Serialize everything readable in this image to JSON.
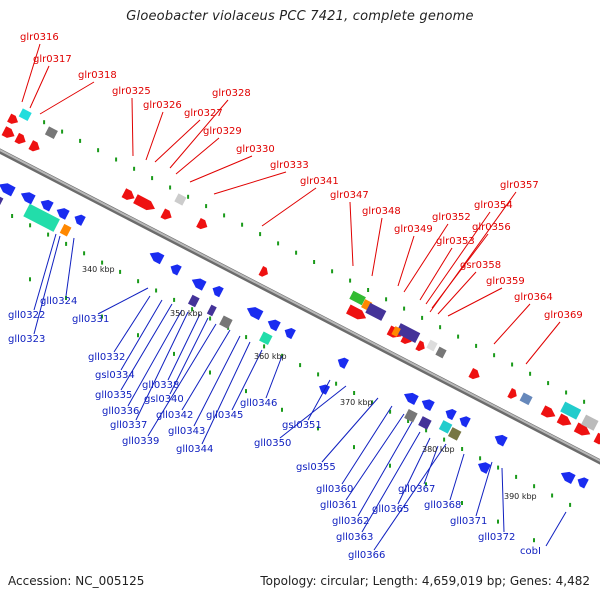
{
  "title": "Gloeobacter violaceus PCC 7421, complete genome",
  "footer": {
    "accession": "Accession: NC_005125",
    "summary": "Topology: circular; Length: 4,659,019 bp; Genes: 4,482"
  },
  "colors": {
    "forward_label": "#e00000",
    "reverse_label": "#1020c0",
    "backbone": "#8a8a8a",
    "tick": "#1a9a1a"
  },
  "kbp_marks": [
    "340 kbp",
    "350 kbp",
    "360 kbp",
    "370 kbp",
    "380 kbp",
    "390 kbp"
  ],
  "forward_genes": [
    "glr0316",
    "glr0317",
    "glr0318",
    "glr0325",
    "glr0326",
    "glr0327",
    "glr0328",
    "glr0329",
    "glr0330",
    "glr0333",
    "glr0341",
    "glr0347",
    "glr0348",
    "glr0349",
    "glr0352",
    "glr0353",
    "glr0354",
    "glr0356",
    "glr0357",
    "gsr0358",
    "glr0359",
    "glr0364",
    "glr0369"
  ],
  "reverse_genes": [
    "gll0322",
    "gll0323",
    "gll0324",
    "gll0331",
    "gll0332",
    "gsl0334",
    "gll0335",
    "gll0336",
    "gll0337",
    "gll0338",
    "gsl0340",
    "gll0339",
    "gll0342",
    "gll0343",
    "gll0344",
    "gll0345",
    "gll0346",
    "gsl0351",
    "gll0350",
    "gsl0355",
    "gll0360",
    "gll0361",
    "gll0362",
    "gll0363",
    "gll0365",
    "gll0366",
    "gll0367",
    "gll0368",
    "gll0371",
    "gll0372",
    "cobI"
  ]
}
